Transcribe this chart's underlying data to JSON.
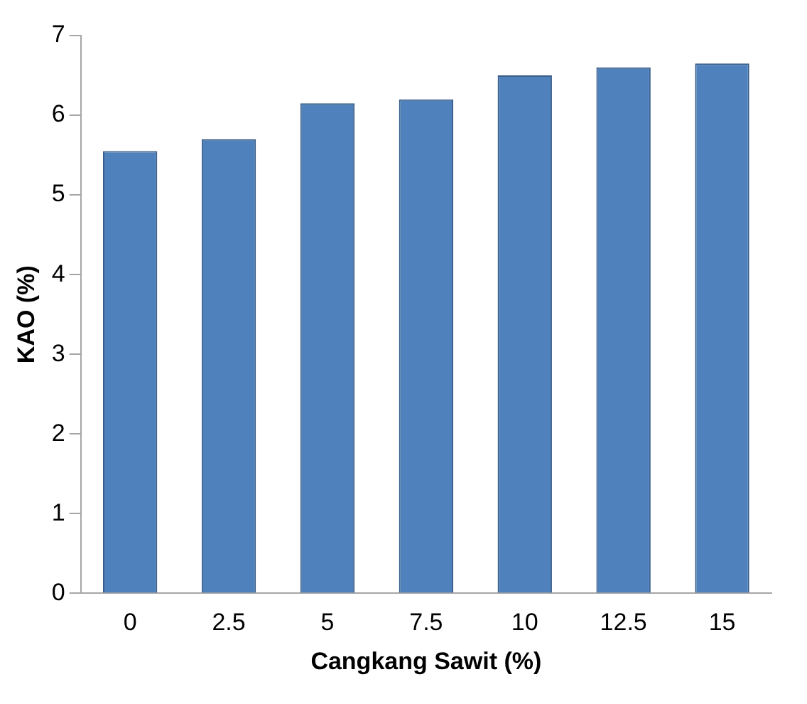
{
  "chart_data": {
    "type": "bar",
    "xlabel": "Cangkang Sawit (%)",
    "ylabel": "KAO (%)",
    "categories": [
      "0",
      "2.5",
      "5",
      "7.5",
      "10",
      "12.5",
      "15"
    ],
    "values": [
      5.55,
      5.7,
      6.15,
      6.2,
      6.5,
      6.6,
      6.65
    ],
    "color": "#4f81bd",
    "ylim": [
      0,
      7
    ],
    "yticks": [
      0,
      1,
      2,
      3,
      4,
      5,
      6,
      7
    ],
    "grid": false,
    "legend": false
  }
}
